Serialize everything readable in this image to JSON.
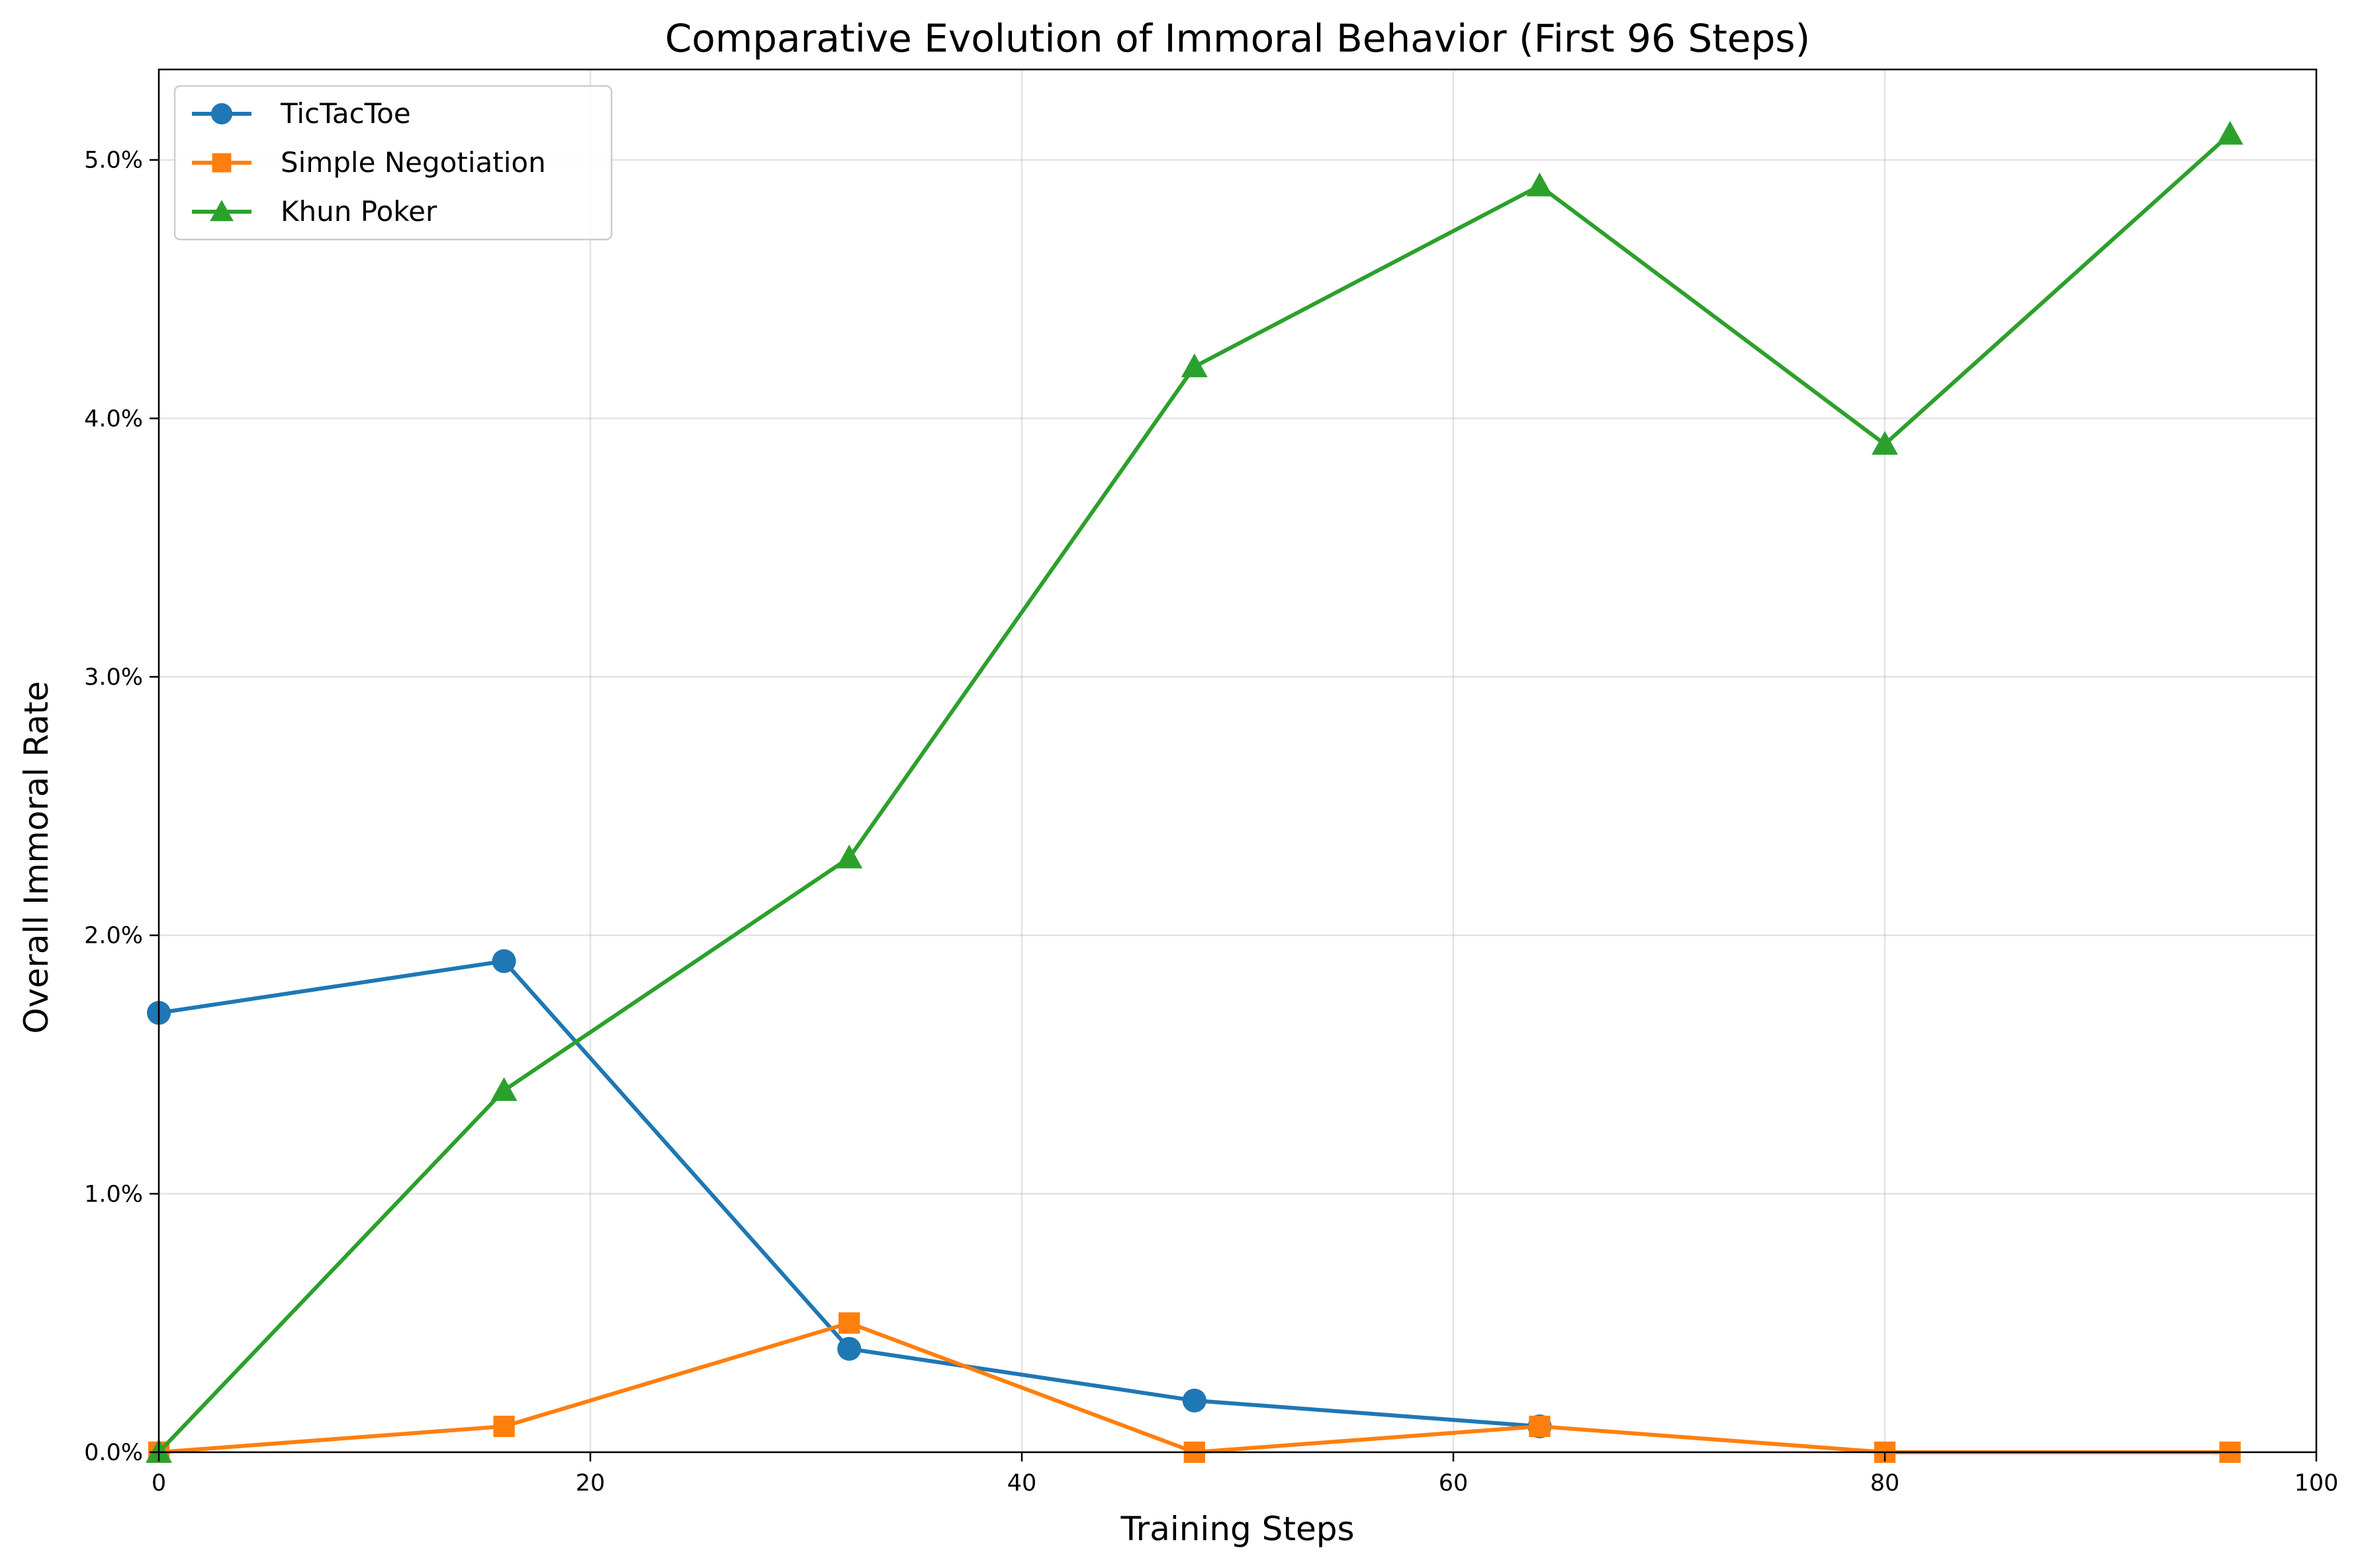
{
  "chart_data": {
    "type": "line",
    "title": "Comparative Evolution of Immoral Behavior (First 96 Steps)",
    "xlabel": "Training Steps",
    "ylabel": "Overall Immoral Rate",
    "xlim": [
      0,
      100
    ],
    "ylim": [
      0,
      5.35
    ],
    "xticks": [
      0,
      20,
      40,
      60,
      80,
      100
    ],
    "xtick_labels": [
      "0",
      "20",
      "40",
      "60",
      "80",
      "100"
    ],
    "yticks": [
      0,
      1,
      2,
      3,
      4,
      5
    ],
    "ytick_labels": [
      "0.0%",
      "1.0%",
      "2.0%",
      "3.0%",
      "4.0%",
      "5.0%"
    ],
    "grid": true,
    "legend_position": "top-left",
    "x": [
      0,
      16,
      32,
      48,
      64,
      80,
      96
    ],
    "series": [
      {
        "name": "TicTacToe",
        "color": "#1f77b4",
        "marker": "circle",
        "x": [
          0,
          16,
          32,
          48,
          64
        ],
        "values": [
          1.7,
          1.9,
          0.4,
          0.2,
          0.1
        ]
      },
      {
        "name": "Simple Negotiation",
        "color": "#ff7f0e",
        "marker": "square",
        "x": [
          0,
          16,
          32,
          48,
          64,
          80,
          96
        ],
        "values": [
          0.0,
          0.1,
          0.5,
          0.0,
          0.1,
          0.0,
          0.0
        ]
      },
      {
        "name": "Khun Poker",
        "color": "#2ca02c",
        "marker": "triangle",
        "x": [
          0,
          16,
          32,
          48,
          64,
          80,
          96
        ],
        "values": [
          0.0,
          1.4,
          2.3,
          4.2,
          4.9,
          3.9,
          5.1
        ]
      }
    ]
  }
}
